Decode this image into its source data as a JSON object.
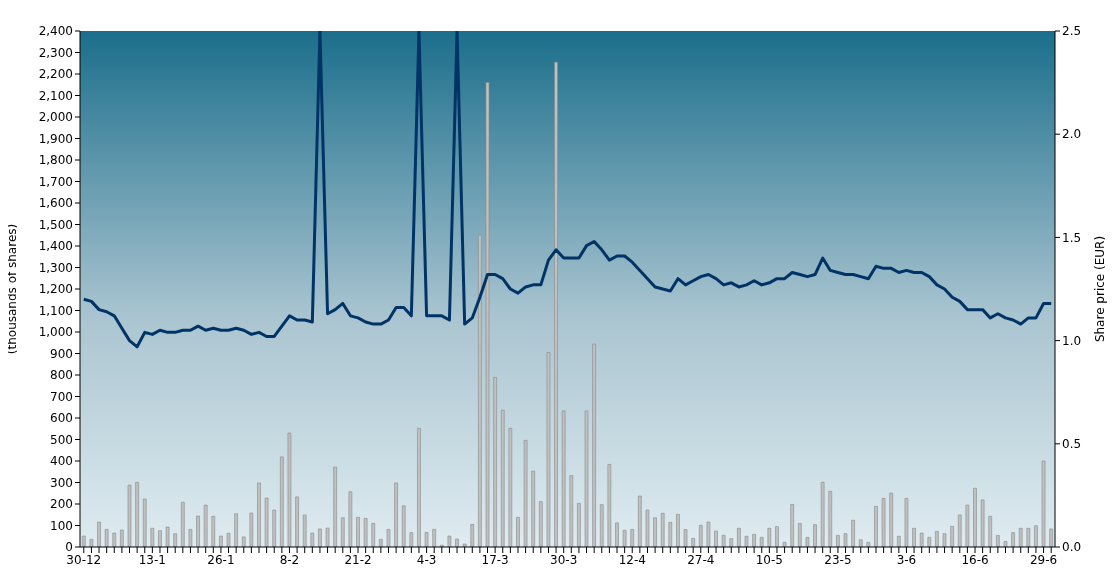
{
  "chart_data": {
    "type": "bar",
    "ylabel": "(thousands of shares)",
    "y2label": "Share price (EUR)",
    "categories": [
      "30-12",
      null,
      null,
      null,
      null,
      null,
      null,
      null,
      null,
      "13-1",
      null,
      null,
      null,
      null,
      null,
      null,
      null,
      null,
      "26-1",
      null,
      null,
      null,
      null,
      null,
      null,
      null,
      null,
      "8-2",
      null,
      null,
      null,
      null,
      null,
      null,
      null,
      null,
      "21-2",
      null,
      null,
      null,
      null,
      null,
      null,
      null,
      null,
      "4-3",
      null,
      null,
      null,
      null,
      null,
      null,
      null,
      null,
      "17-3",
      null,
      null,
      null,
      null,
      null,
      null,
      null,
      null,
      "30-3",
      null,
      null,
      null,
      null,
      null,
      null,
      null,
      null,
      "12-4",
      null,
      null,
      null,
      null,
      null,
      null,
      null,
      null,
      "27-4",
      null,
      null,
      null,
      null,
      null,
      null,
      null,
      null,
      "10-5",
      null,
      null,
      null,
      null,
      null,
      null,
      null,
      null,
      "23-5",
      null,
      null,
      null,
      null,
      null,
      null,
      null,
      null,
      "3-6",
      null,
      null,
      null,
      null,
      null,
      null,
      null,
      null,
      "16-6",
      null,
      null,
      null,
      null,
      null,
      null,
      null,
      null,
      "29-6",
      null
    ],
    "series": [
      {
        "color": "#c0c0c0",
        "values": [
          51,
          36,
          116,
          82,
          65,
          79,
          288,
          301,
          223,
          87,
          76,
          93,
          62,
          208,
          82,
          144,
          195,
          143,
          51,
          64,
          155,
          47,
          158,
          298,
          228,
          172,
          419,
          530,
          233,
          149,
          65,
          84,
          88,
          372,
          136,
          257,
          138,
          133,
          110,
          36,
          82,
          298,
          192,
          67,
          552,
          68,
          82,
          8,
          51,
          37,
          14,
          105,
          1451,
          2160,
          789,
          636,
          552,
          138,
          496,
          353,
          211,
          905,
          2255,
          633,
          332,
          203,
          633,
          944,
          197,
          384,
          112,
          78,
          82,
          237,
          172,
          136,
          157,
          115,
          152,
          81,
          40,
          101,
          116,
          74,
          54,
          39,
          87,
          50,
          59,
          45,
          87,
          95,
          22,
          198,
          110,
          45,
          104,
          301,
          259,
          54,
          62,
          124,
          34,
          22,
          189,
          226,
          251,
          50,
          226,
          87,
          65,
          45,
          73,
          62,
          96,
          149,
          195,
          273,
          219,
          143,
          54,
          26,
          67,
          87,
          87,
          99,
          400,
          84
        ]
      },
      {
        "type": "line",
        "axis": "y2",
        "color": "#003366",
        "values": [
          1.2,
          1.19,
          1.15,
          1.14,
          1.12,
          1.06,
          1.0,
          0.97,
          1.04,
          1.03,
          1.05,
          1.04,
          1.04,
          1.05,
          1.05,
          1.07,
          1.05,
          1.06,
          1.05,
          1.05,
          1.06,
          1.05,
          1.03,
          1.04,
          1.02,
          1.02,
          1.07,
          1.12,
          1.1,
          1.1,
          1.09,
          2.5,
          1.13,
          1.15,
          1.18,
          1.12,
          1.11,
          1.09,
          1.08,
          1.08,
          1.1,
          1.16,
          1.16,
          1.12,
          2.5,
          1.12,
          1.12,
          1.12,
          1.1,
          2.5,
          1.08,
          1.11,
          1.21,
          1.32,
          1.32,
          1.3,
          1.25,
          1.23,
          1.26,
          1.27,
          1.27,
          1.39,
          1.44,
          1.4,
          1.4,
          1.4,
          1.46,
          1.48,
          1.44,
          1.39,
          1.41,
          1.41,
          1.38,
          1.34,
          1.3,
          1.26,
          1.25,
          1.24,
          1.3,
          1.27,
          1.29,
          1.31,
          1.32,
          1.3,
          1.27,
          1.28,
          1.26,
          1.27,
          1.29,
          1.27,
          1.28,
          1.3,
          1.3,
          1.33,
          1.32,
          1.31,
          1.32,
          1.4,
          1.34,
          1.33,
          1.32,
          1.32,
          1.31,
          1.3,
          1.36,
          1.35,
          1.35,
          1.33,
          1.34,
          1.33,
          1.33,
          1.31,
          1.27,
          1.25,
          1.21,
          1.19,
          1.15,
          1.15,
          1.15,
          1.11,
          1.13,
          1.11,
          1.1,
          1.08,
          1.11,
          1.11,
          1.18,
          1.18
        ]
      }
    ],
    "ylim": [
      0,
      2400
    ],
    "yticks": [
      0,
      100,
      200,
      300,
      400,
      500,
      600,
      700,
      800,
      900,
      {
        "value": 1000,
        "label": "1,000"
      },
      {
        "value": 1100,
        "label": "1,100"
      },
      {
        "value": 1200,
        "label": "1,200"
      },
      {
        "value": 1300,
        "label": "1,300"
      },
      {
        "value": 1400,
        "label": "1,400"
      },
      {
        "value": 1500,
        "label": "1,500"
      },
      {
        "value": 1600,
        "label": "1,600"
      },
      {
        "value": 1700,
        "label": "1,700"
      },
      {
        "value": 1800,
        "label": "1,800"
      },
      {
        "value": 1900,
        "label": "1,900"
      },
      {
        "value": 2000,
        "label": "2,000"
      },
      {
        "value": 2100,
        "label": "2,100"
      },
      {
        "value": 2200,
        "label": "2,200"
      },
      {
        "value": 2300,
        "label": "2,300"
      },
      {
        "value": 2400,
        "label": "2,400"
      }
    ],
    "y2lim": [
      0,
      2.5
    ],
    "y2ticks": [
      {
        "value": 0,
        "label": "0.0"
      },
      0.5,
      {
        "value": 1,
        "label": "1.0"
      },
      1.5,
      {
        "value": 2,
        "label": "2.0"
      },
      2.5
    ]
  }
}
